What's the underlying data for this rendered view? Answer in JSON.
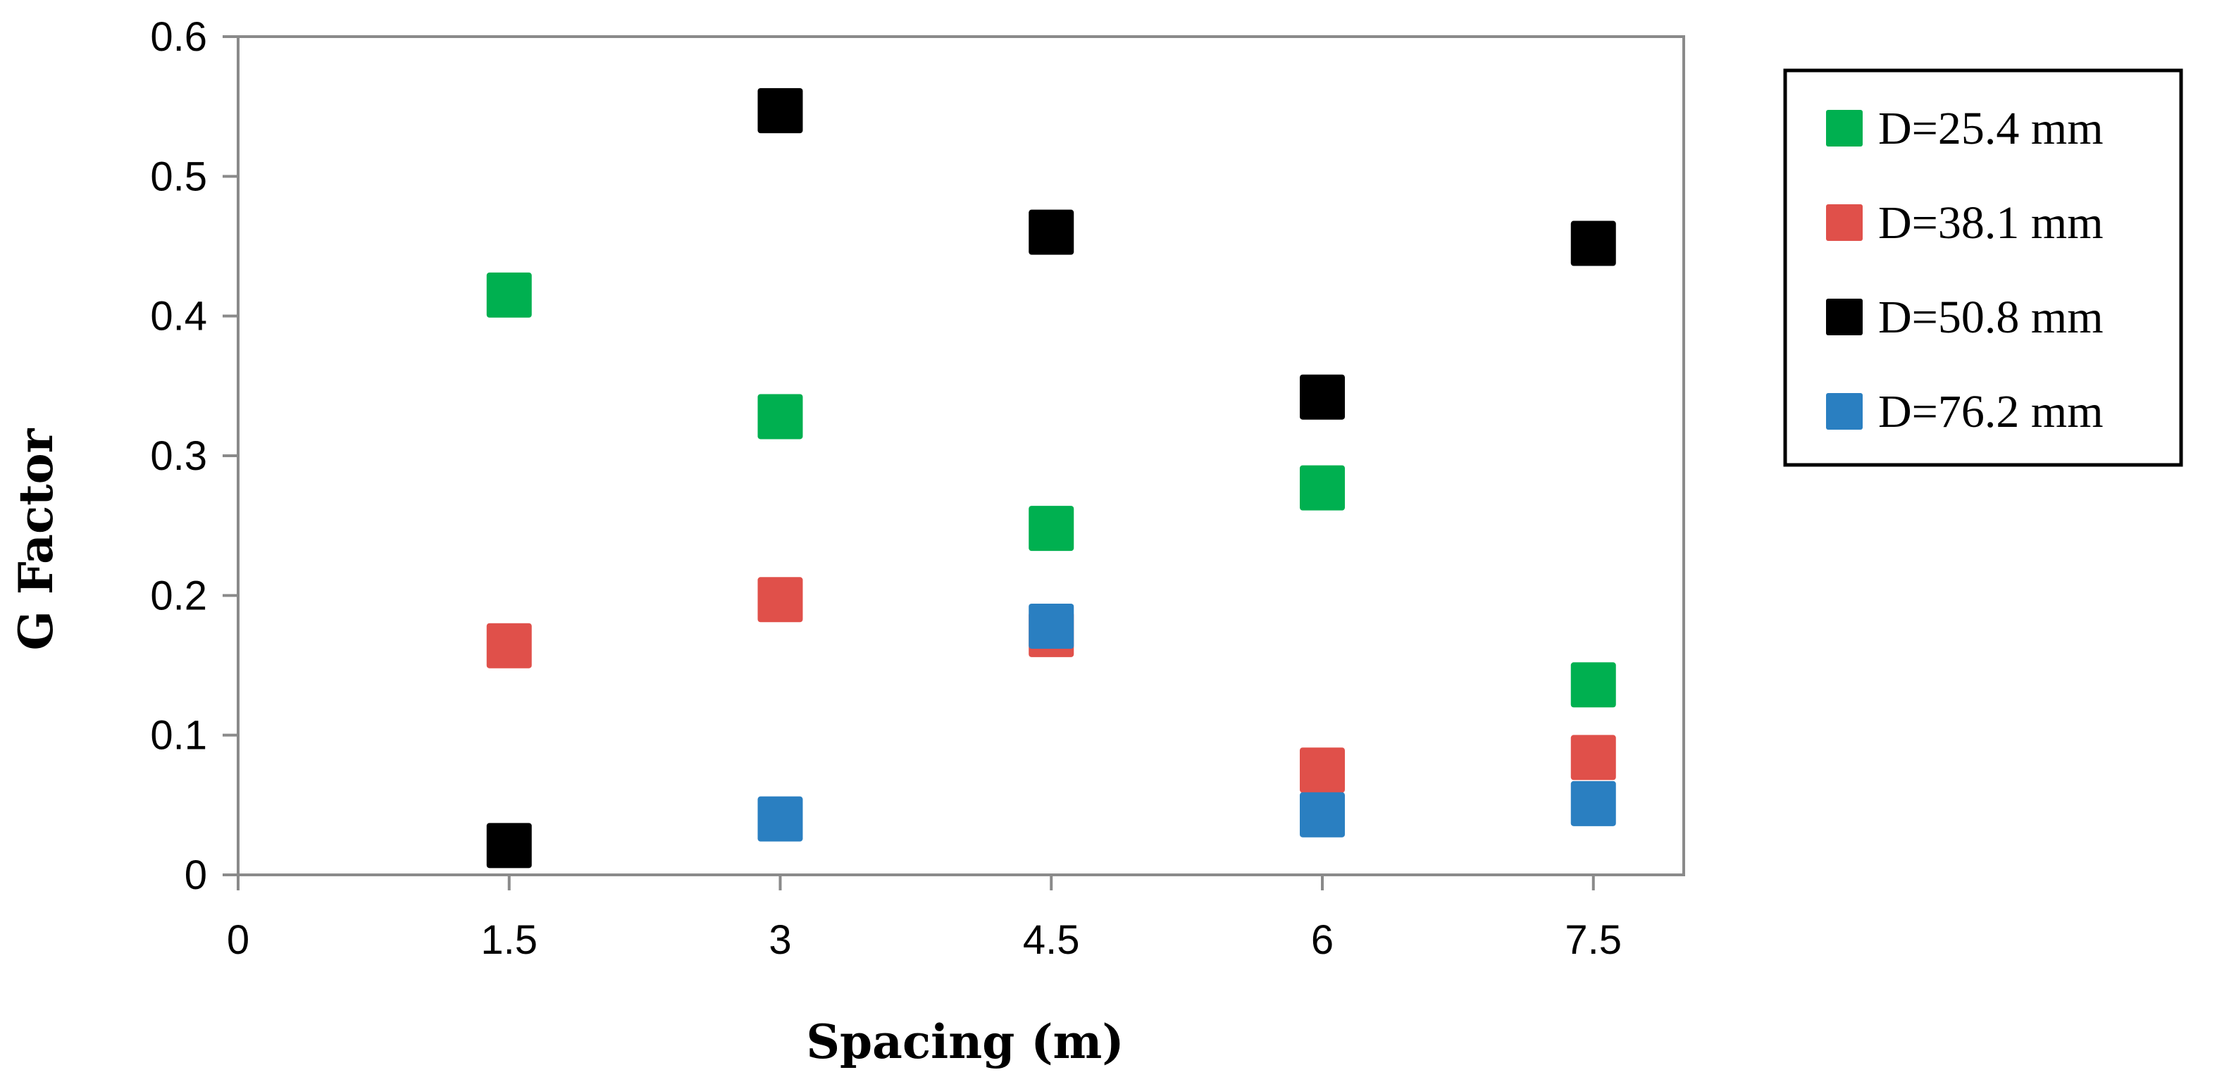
{
  "chart_data": {
    "type": "scatter",
    "title": "",
    "xlabel": "Spacing (m)",
    "ylabel": "G Factor",
    "xlim": [
      0,
      8
    ],
    "ylim": [
      0,
      0.6
    ],
    "xticks": [
      0,
      1.5,
      3,
      4.5,
      6,
      7.5
    ],
    "xtick_labels": [
      "0",
      "1.5",
      "3",
      "4.5",
      "6",
      "7.5"
    ],
    "yticks": [
      0,
      0.1,
      0.2,
      0.3,
      0.4,
      0.5,
      0.6
    ],
    "ytick_labels": [
      "0",
      "0.1",
      "0.2",
      "0.3",
      "0.4",
      "0.5",
      "0.6"
    ],
    "grid": false,
    "legend_position": "right",
    "series": [
      {
        "name": "D=25.4 mm",
        "color": "#00b050",
        "marker": "square",
        "x": [
          1.5,
          3,
          4.5,
          6,
          7.5
        ],
        "y": [
          0.415,
          0.328,
          0.248,
          0.277,
          0.136
        ]
      },
      {
        "name": "D=38.1 mm",
        "color": "#e0504a",
        "marker": "square",
        "x": [
          1.5,
          3,
          4.5,
          6,
          7.5
        ],
        "y": [
          0.164,
          0.197,
          0.172,
          0.075,
          0.084
        ]
      },
      {
        "name": "D=50.8 mm",
        "color": "#000000",
        "marker": "square",
        "x": [
          1.5,
          3,
          4.5,
          6,
          7.5
        ],
        "y": [
          0.021,
          0.547,
          0.46,
          0.342,
          0.452
        ]
      },
      {
        "name": "D=76.2 mm",
        "color": "#2a7fc1",
        "marker": "square",
        "x": [
          3,
          4.5,
          6,
          7.5
        ],
        "y": [
          0.04,
          0.178,
          0.043,
          0.051
        ]
      }
    ]
  }
}
